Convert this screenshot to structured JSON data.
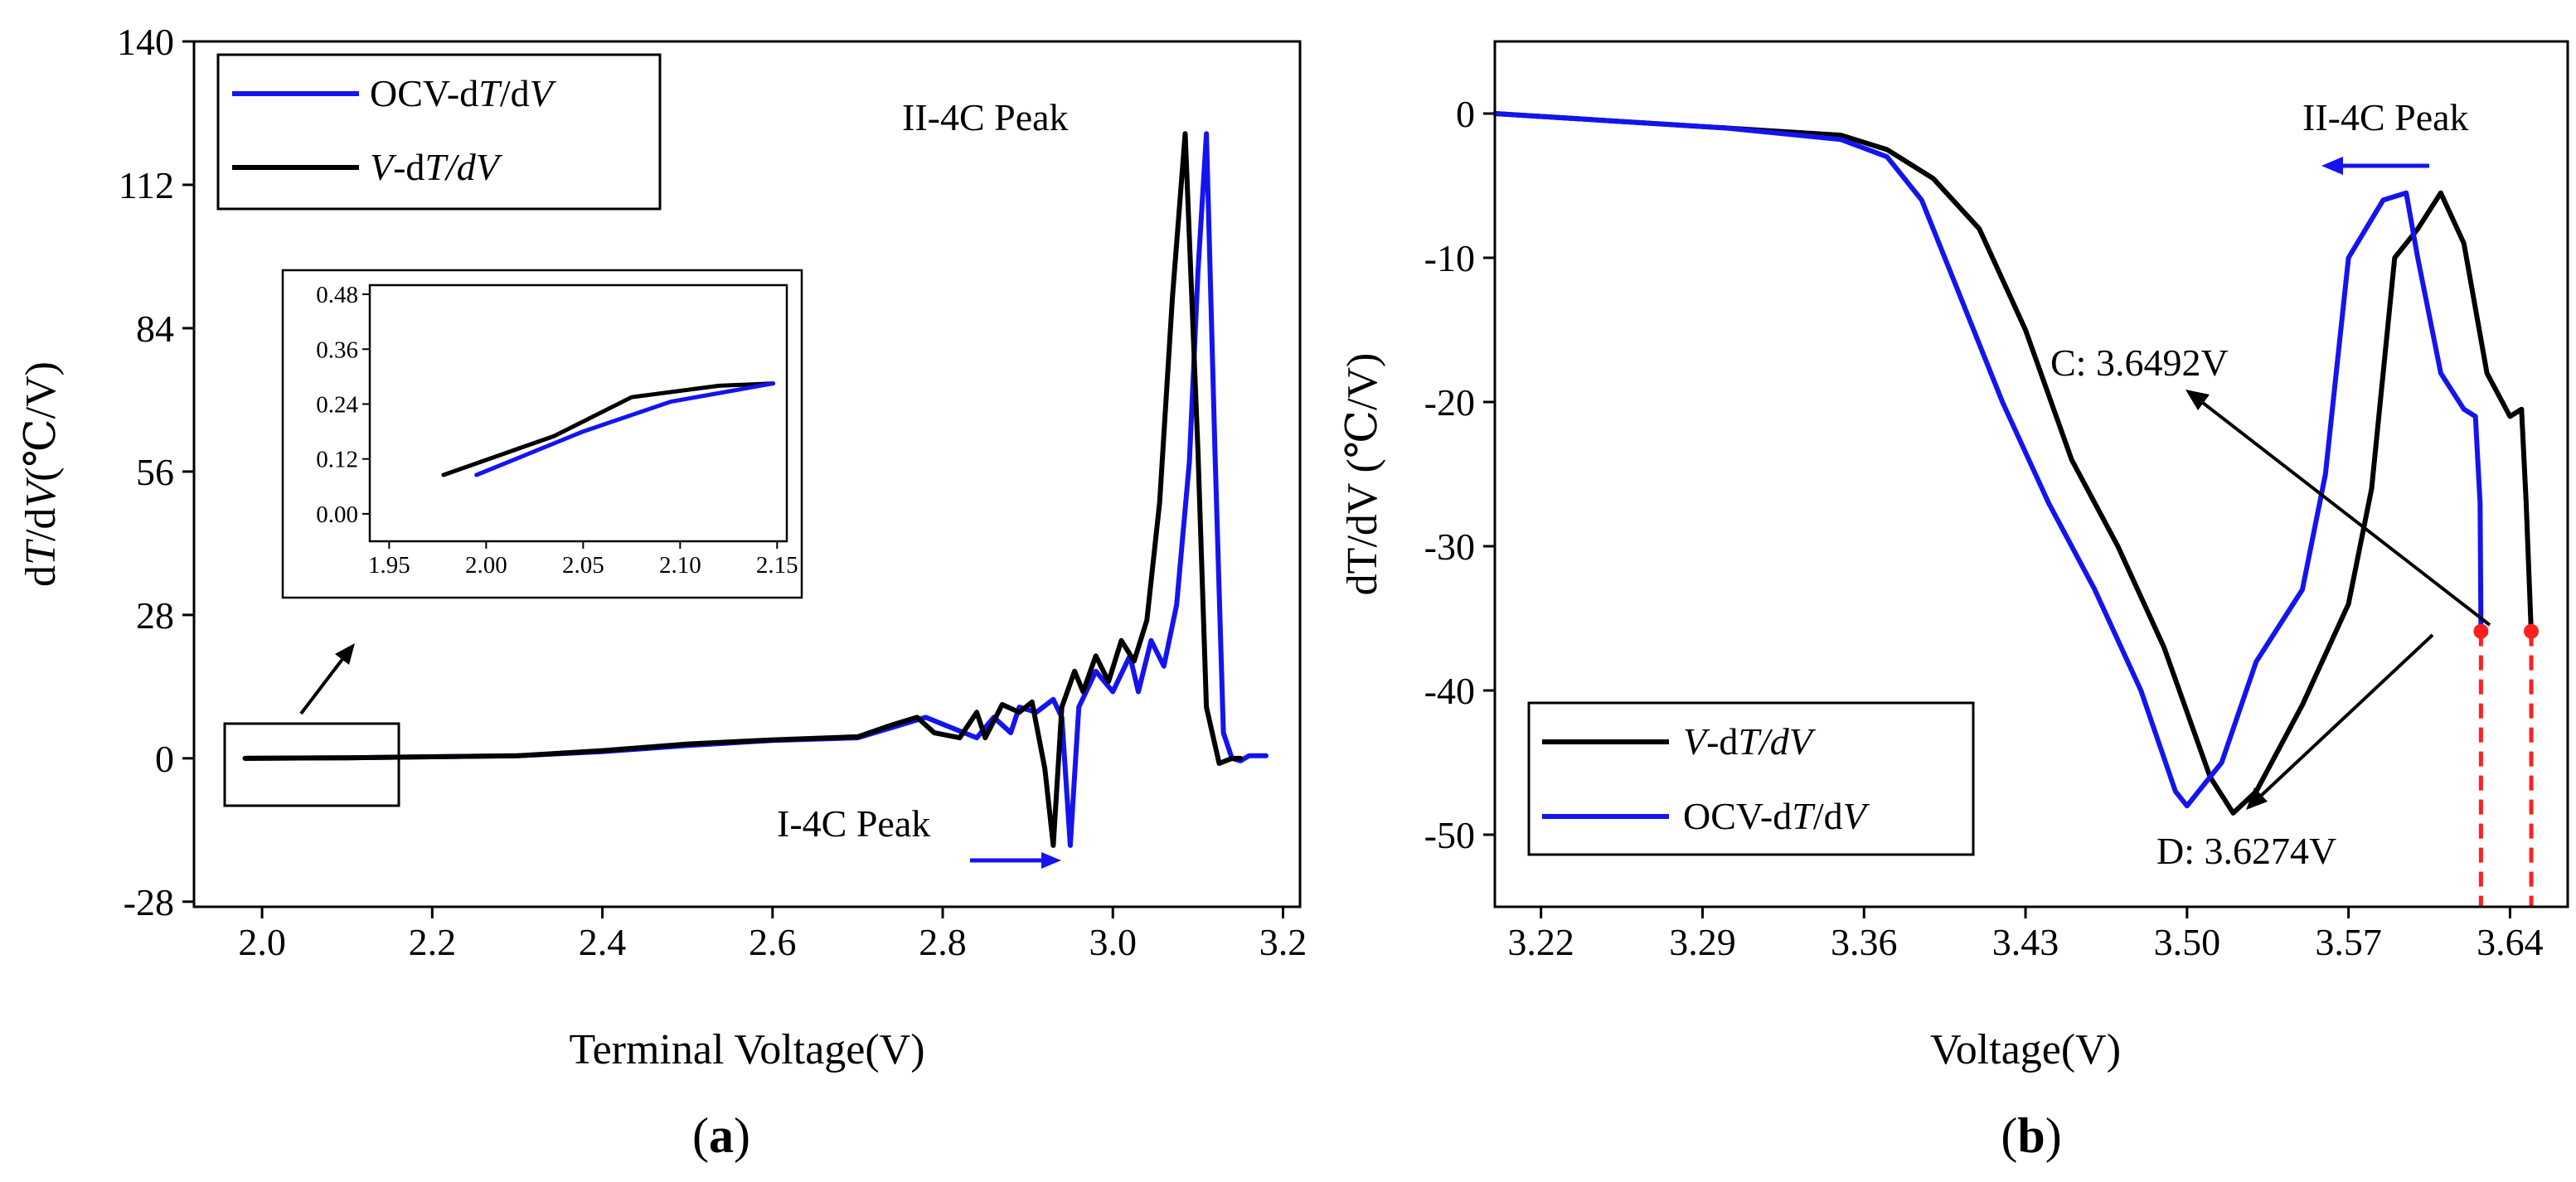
{
  "chart_data": [
    {
      "panel": "a",
      "type": "line",
      "caption_open": "(",
      "caption_letter": "a",
      "caption_close": ")",
      "xlabel": "Terminal Voltage(V)",
      "ylabel": {
        "p1": "d",
        "p2": "T",
        "p3": "/d",
        "p4": "V",
        "p5": "(℃/V)"
      },
      "xlim": [
        1.92,
        3.22
      ],
      "ylim": [
        -29,
        140
      ],
      "xticks": [
        2.0,
        2.2,
        2.4,
        2.6,
        2.8,
        3.0,
        3.2
      ],
      "xtick_labels": [
        "2.0",
        "2.2",
        "2.4",
        "2.6",
        "2.8",
        "3.0",
        "3.2"
      ],
      "yticks": [
        -28,
        0,
        28,
        56,
        84,
        112,
        140
      ],
      "ytick_labels": [
        "-28",
        "0",
        "28",
        "56",
        "84",
        "112",
        "140"
      ],
      "legend": [
        {
          "p1": "OCV-d",
          "p2": "T",
          "p3": "/d",
          "p4": "V",
          "color": "#1414ee"
        },
        {
          "p1": "",
          "p2": "V",
          "p3": "-d",
          "p4": "T/dV",
          "color": "#000000"
        }
      ],
      "annotations": {
        "peak2": "II-4C Peak",
        "peak1": "I-4C Peak"
      },
      "series": [
        {
          "name": "OCV-dT/dV",
          "color": "#1414ee",
          "points": [
            [
              1.98,
              0
            ],
            [
              2.1,
              0.1
            ],
            [
              2.2,
              0.3
            ],
            [
              2.3,
              0.5
            ],
            [
              2.4,
              1.3
            ],
            [
              2.5,
              2.5
            ],
            [
              2.6,
              3.5
            ],
            [
              2.7,
              4
            ],
            [
              2.75,
              6.5
            ],
            [
              2.78,
              8
            ],
            [
              2.81,
              6
            ],
            [
              2.84,
              4
            ],
            [
              2.86,
              8
            ],
            [
              2.88,
              5
            ],
            [
              2.89,
              10
            ],
            [
              2.91,
              9
            ],
            [
              2.93,
              11.5
            ],
            [
              2.94,
              8
            ],
            [
              2.95,
              -17
            ],
            [
              2.96,
              10
            ],
            [
              2.98,
              17
            ],
            [
              3.0,
              13
            ],
            [
              3.02,
              20
            ],
            [
              3.03,
              13
            ],
            [
              3.045,
              23
            ],
            [
              3.06,
              18
            ],
            [
              3.075,
              30
            ],
            [
              3.09,
              58
            ],
            [
              3.1,
              95
            ],
            [
              3.11,
              122
            ],
            [
              3.12,
              60
            ],
            [
              3.13,
              5
            ],
            [
              3.14,
              0
            ],
            [
              3.15,
              -0.5
            ],
            [
              3.16,
              0.5
            ],
            [
              3.18,
              0.5
            ]
          ]
        },
        {
          "name": "V-dT/dV",
          "color": "#000000",
          "points": [
            [
              1.98,
              0
            ],
            [
              2.1,
              0.1
            ],
            [
              2.2,
              0.3
            ],
            [
              2.3,
              0.5
            ],
            [
              2.4,
              1.5
            ],
            [
              2.5,
              2.8
            ],
            [
              2.6,
              3.6
            ],
            [
              2.7,
              4.2
            ],
            [
              2.74,
              6.5
            ],
            [
              2.77,
              8
            ],
            [
              2.79,
              5
            ],
            [
              2.82,
              4
            ],
            [
              2.84,
              9
            ],
            [
              2.85,
              4
            ],
            [
              2.87,
              10.5
            ],
            [
              2.89,
              9
            ],
            [
              2.905,
              11
            ],
            [
              2.92,
              -2
            ],
            [
              2.93,
              -17
            ],
            [
              2.94,
              10
            ],
            [
              2.955,
              17
            ],
            [
              2.965,
              13
            ],
            [
              2.98,
              20
            ],
            [
              2.995,
              15
            ],
            [
              3.01,
              23
            ],
            [
              3.025,
              19
            ],
            [
              3.04,
              27
            ],
            [
              3.055,
              50
            ],
            [
              3.07,
              90
            ],
            [
              3.085,
              122
            ],
            [
              3.1,
              60
            ],
            [
              3.11,
              10
            ],
            [
              3.125,
              -1
            ],
            [
              3.14,
              0
            ],
            [
              3.15,
              0
            ]
          ]
        }
      ],
      "inset": {
        "xlim": [
          1.94,
          2.155
        ],
        "ylim": [
          -0.06,
          0.5
        ],
        "xticks": [
          1.95,
          2.0,
          2.05,
          2.1,
          2.15
        ],
        "xtick_labels": [
          "1.95",
          "2.00",
          "2.05",
          "2.10",
          "2.15"
        ],
        "yticks": [
          0.0,
          0.12,
          0.24,
          0.36,
          0.48
        ],
        "ytick_labels": [
          "0.00",
          "0.12",
          "0.24",
          "0.36",
          "0.48"
        ],
        "series": [
          {
            "name": "V-dT/dV",
            "color": "#000000",
            "points": [
              [
                1.978,
                0.085
              ],
              [
                2.035,
                0.17
              ],
              [
                2.075,
                0.255
              ],
              [
                2.12,
                0.28
              ],
              [
                2.148,
                0.285
              ]
            ]
          },
          {
            "name": "OCV-dT/dV",
            "color": "#1414ee",
            "points": [
              [
                1.995,
                0.085
              ],
              [
                2.05,
                0.18
              ],
              [
                2.095,
                0.245
              ],
              [
                2.148,
                0.285
              ]
            ]
          }
        ]
      }
    },
    {
      "panel": "b",
      "type": "line",
      "caption_open": "(",
      "caption_letter": "b",
      "caption_close": ")",
      "xlabel": "Voltage(V)",
      "ylabel": "dT/dV (℃/V)",
      "xlim": [
        3.2,
        3.665
      ],
      "ylim": [
        -55,
        5
      ],
      "xticks": [
        3.22,
        3.29,
        3.36,
        3.43,
        3.5,
        3.57,
        3.64
      ],
      "xtick_labels": [
        "3.22",
        "3.29",
        "3.36",
        "3.43",
        "3.50",
        "3.57",
        "3.64"
      ],
      "yticks": [
        0,
        -10,
        -20,
        -30,
        -40,
        -50
      ],
      "ytick_labels": [
        "0",
        "-10",
        "-20",
        "-30",
        "-40",
        "-50"
      ],
      "legend": [
        {
          "p1": "",
          "p2": "V",
          "p3": "-d",
          "p4": "T/dV",
          "color": "#000000"
        },
        {
          "p1": "OCV-d",
          "p2": "T",
          "p3": "/d",
          "p4": "V",
          "color": "#1414ee"
        }
      ],
      "annotations": {
        "peak": "II-4C Peak",
        "c_label": "C: 3.6492V",
        "d_label": "D: 3.6274V"
      },
      "markers": [
        {
          "label": "C",
          "x": 3.6492,
          "y": -35.9,
          "color": "#ff1f1f"
        },
        {
          "label": "D",
          "x": 3.6274,
          "y": -35.9,
          "color": "#ff1f1f"
        }
      ],
      "series": [
        {
          "name": "V-dT/dV",
          "color": "#000000",
          "points": [
            [
              3.2,
              0
            ],
            [
              3.25,
              -0.5
            ],
            [
              3.3,
              -1
            ],
            [
              3.35,
              -1.5
            ],
            [
              3.37,
              -2.5
            ],
            [
              3.39,
              -4.5
            ],
            [
              3.41,
              -8
            ],
            [
              3.43,
              -15
            ],
            [
              3.45,
              -24
            ],
            [
              3.47,
              -30
            ],
            [
              3.49,
              -37
            ],
            [
              3.51,
              -46
            ],
            [
              3.52,
              -48.5
            ],
            [
              3.53,
              -47
            ],
            [
              3.55,
              -41
            ],
            [
              3.57,
              -34
            ],
            [
              3.58,
              -26
            ],
            [
              3.59,
              -10
            ],
            [
              3.6,
              -8
            ],
            [
              3.61,
              -5.5
            ],
            [
              3.62,
              -9
            ],
            [
              3.63,
              -18
            ],
            [
              3.64,
              -21
            ],
            [
              3.645,
              -20.5
            ],
            [
              3.647,
              -27
            ],
            [
              3.6492,
              -36
            ]
          ]
        },
        {
          "name": "OCV-dT/dV",
          "color": "#1414ee",
          "points": [
            [
              3.2,
              0
            ],
            [
              3.25,
              -0.5
            ],
            [
              3.3,
              -1
            ],
            [
              3.35,
              -1.8
            ],
            [
              3.37,
              -3
            ],
            [
              3.385,
              -6
            ],
            [
              3.4,
              -12
            ],
            [
              3.42,
              -20
            ],
            [
              3.44,
              -27
            ],
            [
              3.46,
              -33
            ],
            [
              3.48,
              -40
            ],
            [
              3.495,
              -47
            ],
            [
              3.5,
              -48
            ],
            [
              3.515,
              -45
            ],
            [
              3.53,
              -38
            ],
            [
              3.55,
              -33
            ],
            [
              3.56,
              -25
            ],
            [
              3.57,
              -10
            ],
            [
              3.585,
              -6
            ],
            [
              3.595,
              -5.5
            ],
            [
              3.6,
              -10
            ],
            [
              3.61,
              -18
            ],
            [
              3.62,
              -20.5
            ],
            [
              3.625,
              -21
            ],
            [
              3.627,
              -27
            ],
            [
              3.6274,
              -36
            ]
          ]
        }
      ]
    }
  ]
}
